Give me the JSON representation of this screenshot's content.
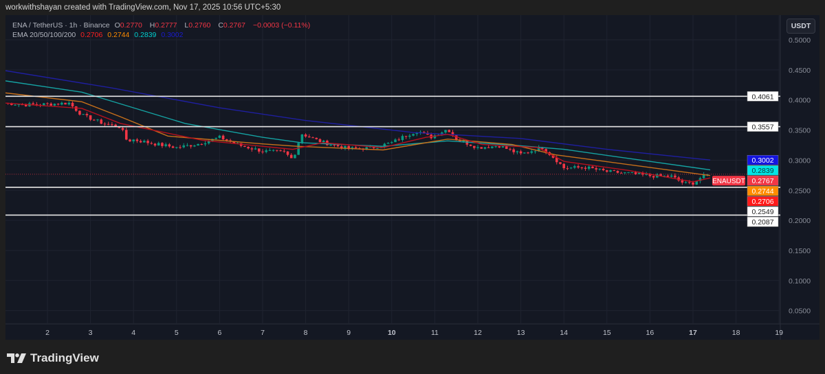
{
  "credit": "workwithshayan created with TradingView.com, Nov 17, 2025 10:56 UTC+5:30",
  "legend": {
    "symbol": "ENA / TetherUS · 1h · Binance",
    "o_label": "O",
    "o": "0.2770",
    "h_label": "H",
    "h": "0.2777",
    "l_label": "L",
    "l": "0.2760",
    "c_label": "C",
    "c": "0.2767",
    "change": "−0.0003 (−0.11%)",
    "ema_label": "EMA 20/50/100/200",
    "ema20": "0.2706",
    "ema50": "0.2744",
    "ema100": "0.2839",
    "ema200": "0.3002"
  },
  "currency_button": "USDT",
  "logo_text": "TradingView",
  "chart_data": {
    "type": "candlestick",
    "symbol": "ENAUSDT",
    "y_ticks": [
      "0.5000",
      "0.4500",
      "0.4000",
      "0.3500",
      "0.3000",
      "0.2500",
      "0.2000",
      "0.1500",
      "0.1000",
      "0.0500"
    ],
    "ylim": [
      0.0,
      0.55
    ],
    "x_ticks": [
      "2",
      "3",
      "4",
      "5",
      "6",
      "7",
      "8",
      "9",
      "10",
      "11",
      "12",
      "13",
      "14",
      "15",
      "16",
      "17",
      "18",
      "19"
    ],
    "x_bold": [
      "10",
      "17"
    ],
    "colors": {
      "up": "#089981",
      "down": "#f23645",
      "ema20": "#b7111e",
      "ema50": "#c8701a",
      "ema100": "#15a3a3",
      "ema200": "#1f1fa0"
    },
    "closes": [
      [
        1.0,
        0.395
      ],
      [
        1.5,
        0.392
      ],
      [
        2.0,
        0.393
      ],
      [
        2.5,
        0.395
      ],
      [
        2.8,
        0.375
      ],
      [
        3.3,
        0.361
      ],
      [
        3.7,
        0.355
      ],
      [
        3.85,
        0.332
      ],
      [
        4.0,
        0.334
      ],
      [
        4.5,
        0.327
      ],
      [
        5.0,
        0.321
      ],
      [
        5.5,
        0.327
      ],
      [
        6.0,
        0.338
      ],
      [
        6.5,
        0.324
      ],
      [
        7.0,
        0.315
      ],
      [
        7.5,
        0.313
      ],
      [
        7.7,
        0.301
      ],
      [
        7.9,
        0.344
      ],
      [
        8.3,
        0.332
      ],
      [
        8.6,
        0.326
      ],
      [
        9.0,
        0.319
      ],
      [
        9.5,
        0.32
      ],
      [
        10.0,
        0.329
      ],
      [
        10.3,
        0.34
      ],
      [
        10.6,
        0.349
      ],
      [
        10.9,
        0.338
      ],
      [
        11.3,
        0.352
      ],
      [
        11.5,
        0.335
      ],
      [
        12.0,
        0.321
      ],
      [
        12.5,
        0.324
      ],
      [
        12.8,
        0.315
      ],
      [
        13.0,
        0.31
      ],
      [
        13.5,
        0.321
      ],
      [
        13.8,
        0.302
      ],
      [
        14.0,
        0.287
      ],
      [
        14.5,
        0.288
      ],
      [
        15.0,
        0.281
      ],
      [
        15.5,
        0.278
      ],
      [
        16.0,
        0.274
      ],
      [
        16.5,
        0.273
      ],
      [
        16.8,
        0.261
      ],
      [
        17.0,
        0.262
      ],
      [
        17.2,
        0.272
      ],
      [
        17.4,
        0.2767
      ]
    ],
    "ema200": [
      [
        1.0,
        0.449
      ],
      [
        3.5,
        0.42
      ],
      [
        6.0,
        0.387
      ],
      [
        8.0,
        0.366
      ],
      [
        10.5,
        0.346
      ],
      [
        13.0,
        0.336
      ],
      [
        15.0,
        0.318
      ],
      [
        17.4,
        0.3002
      ]
    ],
    "ema100": [
      [
        1.0,
        0.432
      ],
      [
        2.8,
        0.413
      ],
      [
        5.2,
        0.361
      ],
      [
        7.0,
        0.338
      ],
      [
        7.9,
        0.329
      ],
      [
        9.8,
        0.323
      ],
      [
        11.3,
        0.332
      ],
      [
        12.8,
        0.325
      ],
      [
        14.0,
        0.318
      ],
      [
        17.4,
        0.2839
      ]
    ],
    "ema50": [
      [
        1.0,
        0.412
      ],
      [
        2.8,
        0.397
      ],
      [
        3.7,
        0.372
      ],
      [
        4.8,
        0.34
      ],
      [
        7.0,
        0.327
      ],
      [
        7.8,
        0.323
      ],
      [
        9.8,
        0.317
      ],
      [
        11.3,
        0.335
      ],
      [
        12.8,
        0.326
      ],
      [
        13.8,
        0.309
      ],
      [
        17.4,
        0.2744
      ]
    ],
    "ema20": [
      [
        1.0,
        0.395
      ],
      [
        2.8,
        0.386
      ],
      [
        3.7,
        0.361
      ],
      [
        5.6,
        0.333
      ],
      [
        7.7,
        0.318
      ],
      [
        8.4,
        0.329
      ],
      [
        9.8,
        0.321
      ],
      [
        10.8,
        0.338
      ],
      [
        11.3,
        0.343
      ],
      [
        12.1,
        0.326
      ],
      [
        13.4,
        0.321
      ],
      [
        14.0,
        0.298
      ],
      [
        15.5,
        0.283
      ],
      [
        17.0,
        0.264
      ],
      [
        17.4,
        0.2706
      ]
    ],
    "horizontal_levels": [
      "0.4061",
      "0.3557",
      "0.2549",
      "0.2087"
    ],
    "price_labels": [
      {
        "text": "0.3002",
        "bg": "#1414e0",
        "fg": "#ffffff"
      },
      {
        "text": "0.2839",
        "bg": "#00e5e5",
        "fg": "#0b3b3b"
      },
      {
        "text": "0.2767",
        "bg": "#f23645",
        "fg": "#ffffff",
        "tag": "ENAUSDT"
      },
      {
        "text": "0.2744",
        "bg": "#ff8c00",
        "fg": "#ffffff"
      },
      {
        "text": "0.2706",
        "bg": "#ff1a1a",
        "fg": "#ffffff"
      }
    ]
  }
}
